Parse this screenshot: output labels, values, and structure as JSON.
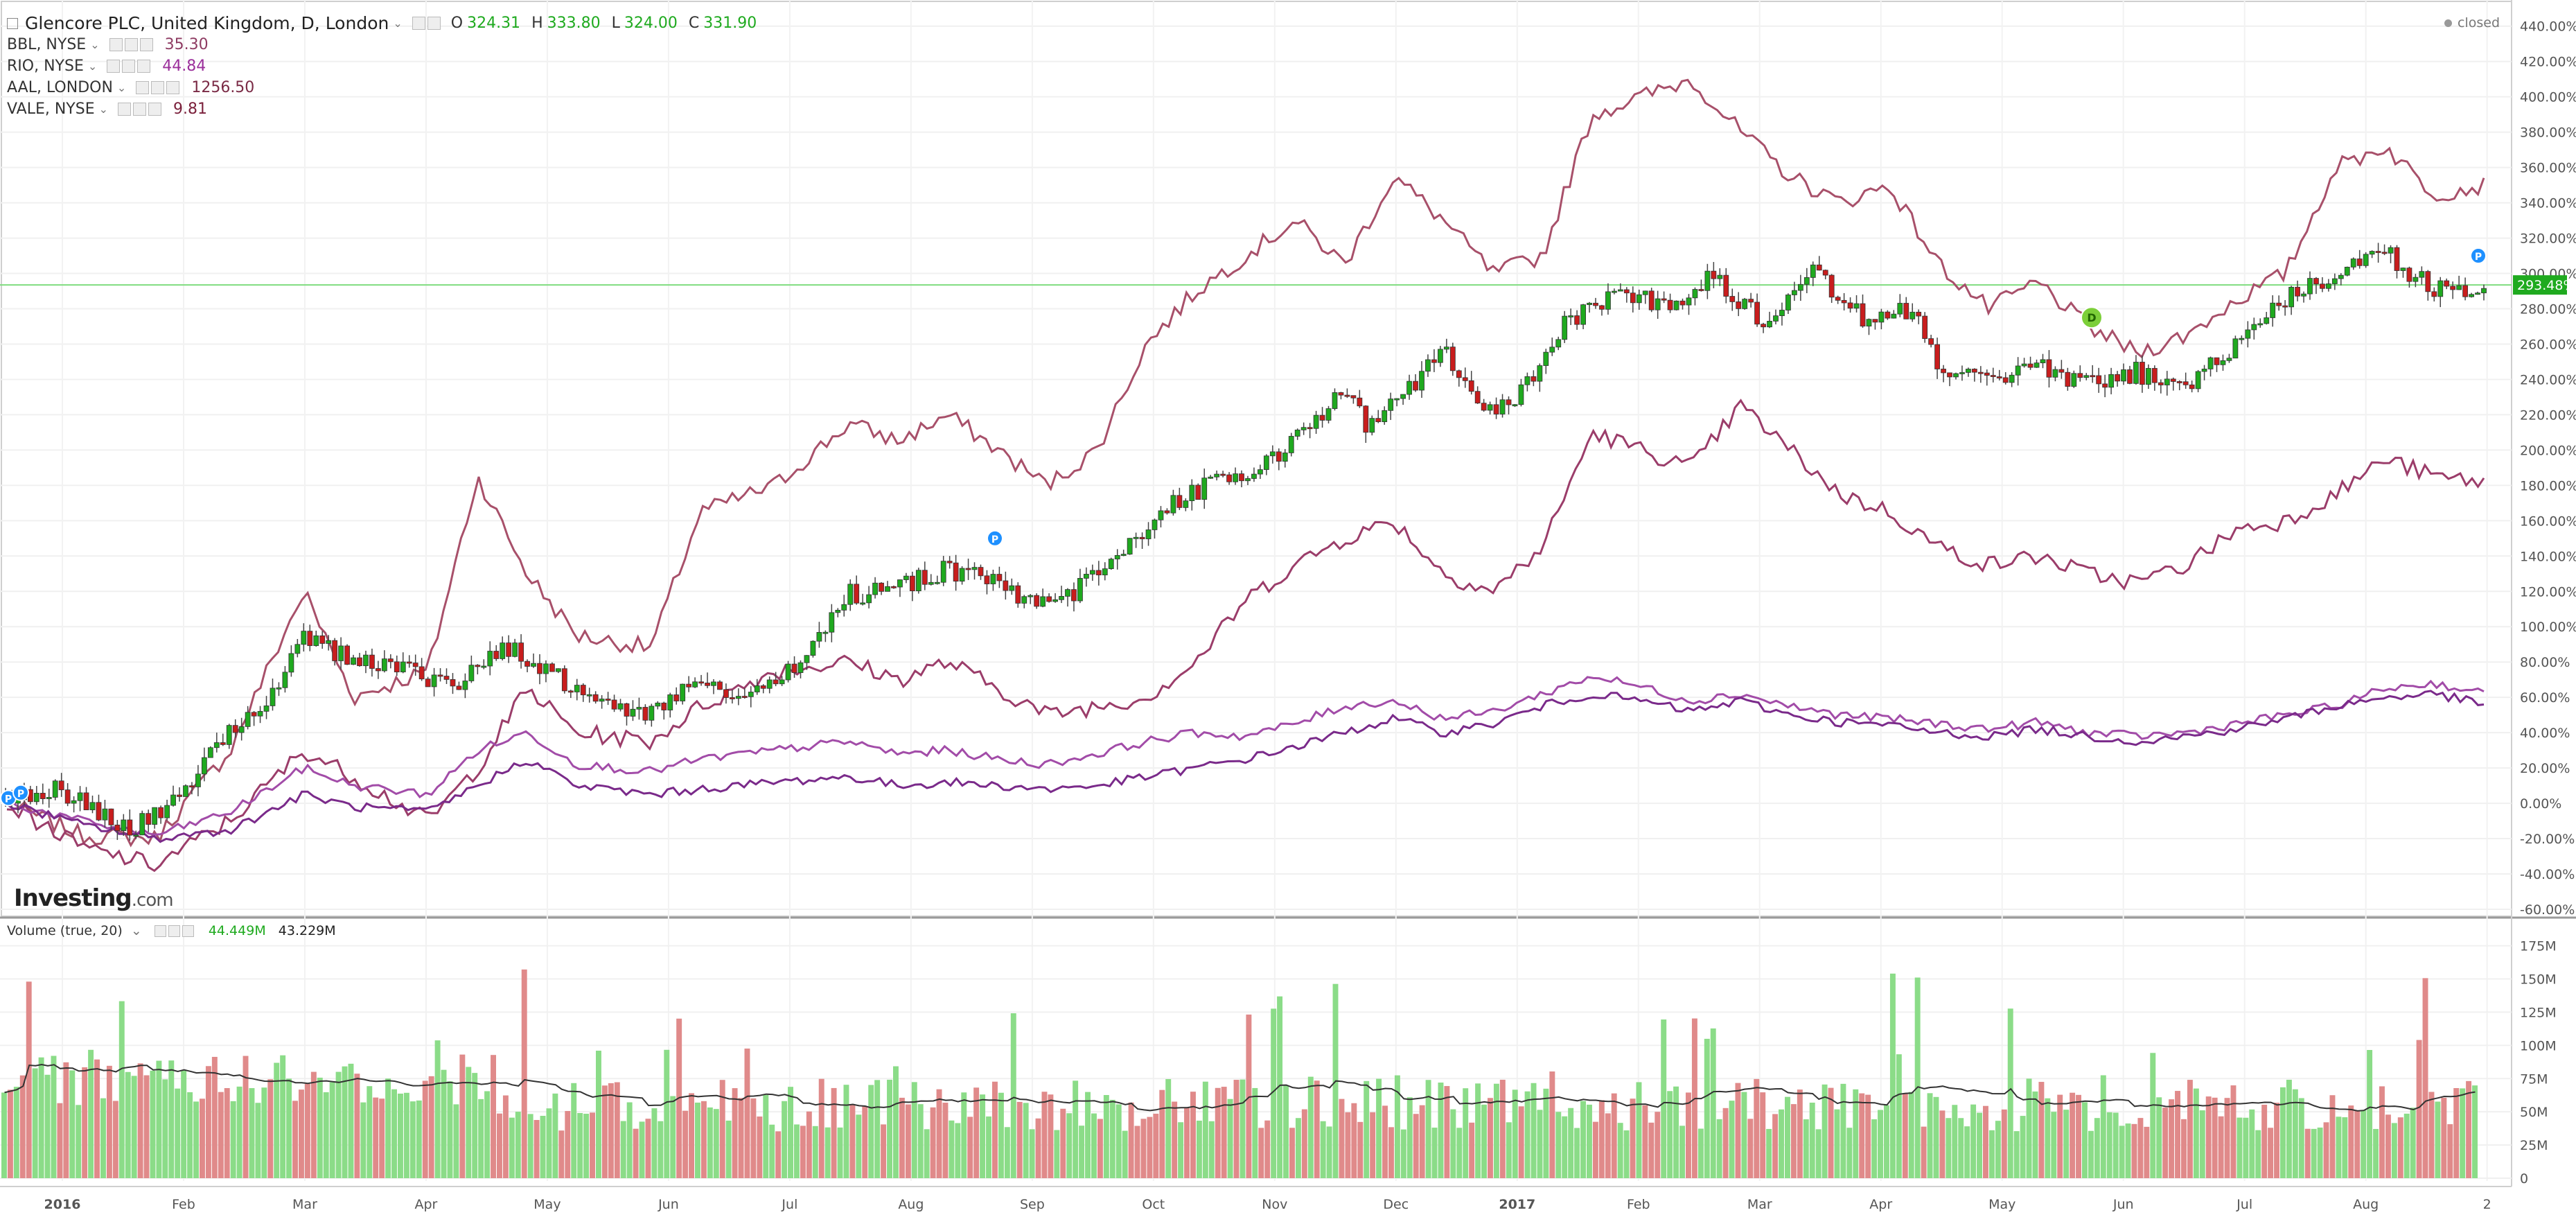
{
  "header": {
    "main_series": "Glencore PLC, United Kingdom, D, London",
    "ohlc": [
      {
        "label": "O",
        "value": "324.31"
      },
      {
        "label": "H",
        "value": "333.80"
      },
      {
        "label": "L",
        "value": "324.00"
      },
      {
        "label": "C",
        "value": "331.90"
      }
    ],
    "status": "closed"
  },
  "compare_series": [
    {
      "name": "BBL, NYSE",
      "value": "35.30",
      "color": "#8e3b62"
    },
    {
      "name": "RIO, NYSE",
      "value": "44.84",
      "color": "#9b2f9b"
    },
    {
      "name": "AAL, LONDON",
      "value": "1256.50",
      "color": "#7a2a45"
    },
    {
      "name": "VALE, NYSE",
      "value": "9.81",
      "color": "#7a1f3a"
    }
  ],
  "price_badge": "293.48%",
  "brand": {
    "name": "Investing",
    "suffix": ".com"
  },
  "volume_legend": {
    "label": "Volume (true, 20)",
    "value1": "44.449M",
    "value2": "43.229M"
  },
  "markers": {
    "p": "P",
    "d": "D"
  },
  "colors": {
    "up": "#1fa91f",
    "down": "#c81d1d",
    "vol_up": "#8bdc88",
    "vol_down": "#e08a8a",
    "line1": "#a8506a",
    "line2": "#9b3d6a",
    "line3": "#a24ca8",
    "line4": "#7a2a8a",
    "ma": "#333333"
  },
  "chart_data": [
    {
      "type": "line",
      "title": "",
      "x_labels": [
        "2016",
        "Feb",
        "Mar",
        "Apr",
        "May",
        "Jun",
        "Jul",
        "Aug",
        "Sep",
        "Oct",
        "Nov",
        "Dec",
        "2017",
        "Feb",
        "Mar",
        "Apr",
        "May",
        "Jun",
        "Jul",
        "Aug",
        "2"
      ],
      "y_ticks": [
        "440.00%",
        "420.00%",
        "400.00%",
        "380.00%",
        "360.00%",
        "340.00%",
        "320.00%",
        "300.00%",
        "280.00%",
        "260.00%",
        "240.00%",
        "220.00%",
        "200.00%",
        "180.00%",
        "160.00%",
        "140.00%",
        "120.00%",
        "100.00%",
        "80.00%",
        "60.00%",
        "40.00%",
        "20.00%",
        "0.00%",
        "-20.00%",
        "-40.00%",
        "-60.00%"
      ],
      "ylim": [
        -60,
        445
      ],
      "y_unit": "%",
      "candles_anchor_pct": [
        [
          0,
          0
        ],
        [
          0.02,
          8
        ],
        [
          0.05,
          -15
        ],
        [
          0.07,
          5
        ],
        [
          0.09,
          40
        ],
        [
          0.11,
          62
        ],
        [
          0.12,
          95
        ],
        [
          0.14,
          82
        ],
        [
          0.16,
          78
        ],
        [
          0.18,
          65
        ],
        [
          0.2,
          90
        ],
        [
          0.22,
          75
        ],
        [
          0.24,
          55
        ],
        [
          0.26,
          52
        ],
        [
          0.28,
          72
        ],
        [
          0.3,
          58
        ],
        [
          0.32,
          80
        ],
        [
          0.34,
          118
        ],
        [
          0.36,
          122
        ],
        [
          0.38,
          132
        ],
        [
          0.4,
          128
        ],
        [
          0.41,
          112
        ],
        [
          0.43,
          118
        ],
        [
          0.45,
          140
        ],
        [
          0.47,
          168
        ],
        [
          0.49,
          185
        ],
        [
          0.51,
          192
        ],
        [
          0.53,
          218
        ],
        [
          0.54,
          238
        ],
        [
          0.55,
          210
        ],
        [
          0.57,
          240
        ],
        [
          0.58,
          258
        ],
        [
          0.6,
          220
        ],
        [
          0.61,
          230
        ],
        [
          0.63,
          272
        ],
        [
          0.65,
          288
        ],
        [
          0.67,
          282
        ],
        [
          0.69,
          298
        ],
        [
          0.71,
          272
        ],
        [
          0.73,
          300
        ],
        [
          0.75,
          275
        ],
        [
          0.77,
          280
        ],
        [
          0.78,
          248
        ],
        [
          0.8,
          238
        ],
        [
          0.82,
          250
        ],
        [
          0.84,
          236
        ],
        [
          0.86,
          244
        ],
        [
          0.88,
          232
        ],
        [
          0.9,
          262
        ],
        [
          0.92,
          285
        ],
        [
          0.94,
          300
        ],
        [
          0.96,
          312
        ],
        [
          0.98,
          290
        ],
        [
          1.0,
          292
        ]
      ],
      "series": [
        {
          "name": "BBL, NYSE",
          "anchors": [
            [
              0,
              0
            ],
            [
              0.03,
              -18
            ],
            [
              0.06,
              -20
            ],
            [
              0.09,
              30
            ],
            [
              0.12,
              120
            ],
            [
              0.14,
              60
            ],
            [
              0.17,
              75
            ],
            [
              0.19,
              185
            ],
            [
              0.21,
              130
            ],
            [
              0.23,
              95
            ],
            [
              0.26,
              88
            ],
            [
              0.28,
              165
            ],
            [
              0.31,
              180
            ],
            [
              0.34,
              215
            ],
            [
              0.36,
              205
            ],
            [
              0.38,
              220
            ],
            [
              0.4,
              200
            ],
            [
              0.42,
              180
            ],
            [
              0.44,
              200
            ],
            [
              0.46,
              260
            ],
            [
              0.48,
              290
            ],
            [
              0.5,
              310
            ],
            [
              0.52,
              330
            ],
            [
              0.54,
              305
            ],
            [
              0.56,
              355
            ],
            [
              0.58,
              330
            ],
            [
              0.6,
              300
            ],
            [
              0.62,
              310
            ],
            [
              0.64,
              390
            ],
            [
              0.66,
              400
            ],
            [
              0.68,
              410
            ],
            [
              0.7,
              380
            ],
            [
              0.72,
              355
            ],
            [
              0.74,
              340
            ],
            [
              0.76,
              350
            ],
            [
              0.78,
              305
            ],
            [
              0.8,
              280
            ],
            [
              0.82,
              295
            ],
            [
              0.84,
              270
            ],
            [
              0.86,
              255
            ],
            [
              0.88,
              265
            ],
            [
              0.9,
              285
            ],
            [
              0.92,
              300
            ],
            [
              0.94,
              360
            ],
            [
              0.96,
              372
            ],
            [
              0.98,
              345
            ],
            [
              1.0,
              350
            ]
          ]
        },
        {
          "name": "AAL, LONDON",
          "anchors": [
            [
              0,
              0
            ],
            [
              0.03,
              -25
            ],
            [
              0.06,
              -35
            ],
            [
              0.09,
              -10
            ],
            [
              0.12,
              30
            ],
            [
              0.14,
              15
            ],
            [
              0.17,
              -10
            ],
            [
              0.19,
              20
            ],
            [
              0.21,
              65
            ],
            [
              0.23,
              40
            ],
            [
              0.26,
              35
            ],
            [
              0.28,
              55
            ],
            [
              0.31,
              75
            ],
            [
              0.34,
              80
            ],
            [
              0.36,
              70
            ],
            [
              0.38,
              80
            ],
            [
              0.4,
              65
            ],
            [
              0.42,
              50
            ],
            [
              0.44,
              55
            ],
            [
              0.46,
              60
            ],
            [
              0.48,
              80
            ],
            [
              0.5,
              115
            ],
            [
              0.52,
              135
            ],
            [
              0.54,
              150
            ],
            [
              0.56,
              160
            ],
            [
              0.58,
              130
            ],
            [
              0.6,
              120
            ],
            [
              0.62,
              145
            ],
            [
              0.64,
              210
            ],
            [
              0.66,
              200
            ],
            [
              0.68,
              190
            ],
            [
              0.7,
              225
            ],
            [
              0.72,
              200
            ],
            [
              0.74,
              175
            ],
            [
              0.76,
              165
            ],
            [
              0.78,
              145
            ],
            [
              0.8,
              135
            ],
            [
              0.82,
              140
            ],
            [
              0.84,
              130
            ],
            [
              0.86,
              125
            ],
            [
              0.88,
              135
            ],
            [
              0.9,
              155
            ],
            [
              0.92,
              160
            ],
            [
              0.94,
              175
            ],
            [
              0.96,
              195
            ],
            [
              0.98,
              185
            ],
            [
              1.0,
              182
            ]
          ]
        },
        {
          "name": "RIO, NYSE",
          "anchors": [
            [
              0,
              0
            ],
            [
              0.03,
              -10
            ],
            [
              0.06,
              -18
            ],
            [
              0.09,
              -5
            ],
            [
              0.12,
              20
            ],
            [
              0.14,
              10
            ],
            [
              0.17,
              5
            ],
            [
              0.19,
              30
            ],
            [
              0.21,
              40
            ],
            [
              0.23,
              22
            ],
            [
              0.26,
              18
            ],
            [
              0.28,
              25
            ],
            [
              0.31,
              30
            ],
            [
              0.34,
              35
            ],
            [
              0.36,
              28
            ],
            [
              0.38,
              30
            ],
            [
              0.4,
              25
            ],
            [
              0.42,
              22
            ],
            [
              0.44,
              28
            ],
            [
              0.46,
              35
            ],
            [
              0.48,
              40
            ],
            [
              0.5,
              38
            ],
            [
              0.52,
              45
            ],
            [
              0.54,
              55
            ],
            [
              0.56,
              58
            ],
            [
              0.58,
              48
            ],
            [
              0.6,
              52
            ],
            [
              0.62,
              62
            ],
            [
              0.64,
              72
            ],
            [
              0.66,
              66
            ],
            [
              0.68,
              58
            ],
            [
              0.7,
              62
            ],
            [
              0.72,
              55
            ],
            [
              0.74,
              50
            ],
            [
              0.76,
              48
            ],
            [
              0.78,
              45
            ],
            [
              0.8,
              42
            ],
            [
              0.82,
              46
            ],
            [
              0.84,
              40
            ],
            [
              0.86,
              38
            ],
            [
              0.88,
              40
            ],
            [
              0.9,
              45
            ],
            [
              0.92,
              50
            ],
            [
              0.94,
              55
            ],
            [
              0.96,
              65
            ],
            [
              0.98,
              68
            ],
            [
              1.0,
              62
            ]
          ]
        },
        {
          "name": "VALE, NYSE",
          "anchors": [
            [
              0,
              0
            ],
            [
              0.03,
              -12
            ],
            [
              0.06,
              -20
            ],
            [
              0.09,
              -15
            ],
            [
              0.12,
              5
            ],
            [
              0.14,
              -2
            ],
            [
              0.17,
              -5
            ],
            [
              0.19,
              10
            ],
            [
              0.21,
              25
            ],
            [
              0.23,
              10
            ],
            [
              0.26,
              5
            ],
            [
              0.28,
              8
            ],
            [
              0.31,
              12
            ],
            [
              0.34,
              15
            ],
            [
              0.36,
              10
            ],
            [
              0.38,
              12
            ],
            [
              0.4,
              10
            ],
            [
              0.42,
              8
            ],
            [
              0.44,
              10
            ],
            [
              0.46,
              15
            ],
            [
              0.48,
              20
            ],
            [
              0.5,
              25
            ],
            [
              0.52,
              32
            ],
            [
              0.54,
              40
            ],
            [
              0.56,
              48
            ],
            [
              0.58,
              40
            ],
            [
              0.6,
              45
            ],
            [
              0.62,
              55
            ],
            [
              0.64,
              62
            ],
            [
              0.66,
              58
            ],
            [
              0.68,
              52
            ],
            [
              0.7,
              58
            ],
            [
              0.72,
              50
            ],
            [
              0.74,
              46
            ],
            [
              0.76,
              44
            ],
            [
              0.78,
              40
            ],
            [
              0.8,
              38
            ],
            [
              0.82,
              42
            ],
            [
              0.84,
              38
            ],
            [
              0.86,
              35
            ],
            [
              0.88,
              38
            ],
            [
              0.9,
              42
            ],
            [
              0.92,
              48
            ],
            [
              0.94,
              55
            ],
            [
              0.96,
              60
            ],
            [
              0.98,
              62
            ],
            [
              1.0,
              56
            ]
          ]
        }
      ]
    },
    {
      "type": "bar",
      "title": "Volume (true, 20)",
      "y_ticks": [
        "175M",
        "150M",
        "125M",
        "100M",
        "75M",
        "50M",
        "25M",
        "0"
      ],
      "ylim": [
        0,
        180
      ]
    }
  ]
}
